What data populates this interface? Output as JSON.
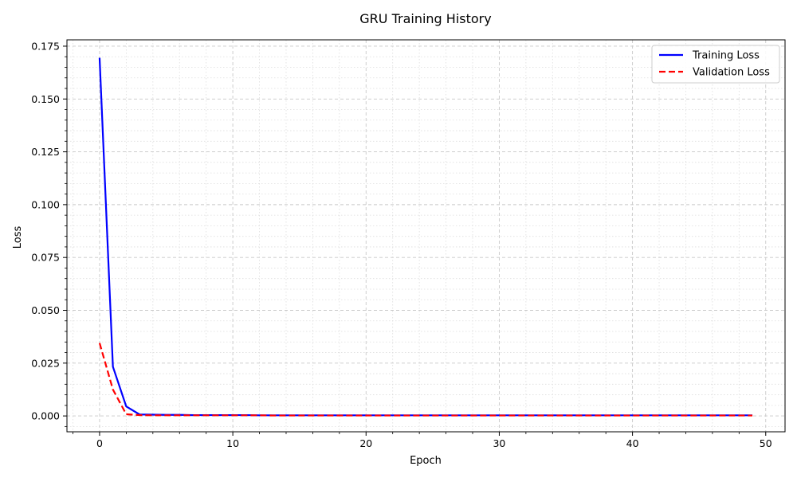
{
  "chart_data": {
    "type": "line",
    "title": "GRU Training History",
    "xlabel": "Epoch",
    "ylabel": "Loss",
    "xlim": [
      -2.45,
      51.45
    ],
    "ylim": [
      -0.0075,
      0.178
    ],
    "xticks": [
      0,
      10,
      20,
      30,
      40,
      50
    ],
    "yticks": [
      0.0,
      0.025,
      0.05,
      0.075,
      0.1,
      0.125,
      0.15,
      0.175
    ],
    "ytick_labels": [
      "0.000",
      "0.025",
      "0.050",
      "0.075",
      "0.100",
      "0.125",
      "0.150",
      "0.175"
    ],
    "grid": true,
    "minor_grid": true,
    "legend_position": "top-right",
    "series": [
      {
        "name": "Training Loss",
        "color": "#0000ff",
        "style": "solid",
        "x": [
          0,
          1,
          2,
          3,
          4,
          5,
          6,
          7,
          8,
          9,
          10,
          11,
          12,
          13,
          14,
          15,
          16,
          17,
          18,
          19,
          20,
          21,
          22,
          23,
          24,
          25,
          26,
          27,
          28,
          29,
          30,
          31,
          32,
          33,
          34,
          35,
          36,
          37,
          38,
          39,
          40,
          41,
          42,
          43,
          44,
          45,
          46,
          47,
          48,
          49
        ],
        "values": [
          0.1695,
          0.0233,
          0.0045,
          0.0007,
          0.0006,
          0.0005,
          0.0005,
          0.0004,
          0.0004,
          0.0004,
          0.0004,
          0.0004,
          0.0003,
          0.0003,
          0.0003,
          0.0003,
          0.0003,
          0.0003,
          0.0003,
          0.0003,
          0.0003,
          0.0003,
          0.0003,
          0.0003,
          0.0003,
          0.0003,
          0.0003,
          0.0003,
          0.0003,
          0.0003,
          0.0003,
          0.0003,
          0.0003,
          0.0003,
          0.0003,
          0.0003,
          0.0003,
          0.0003,
          0.0003,
          0.0003,
          0.0003,
          0.0003,
          0.0003,
          0.0003,
          0.0003,
          0.0003,
          0.0003,
          0.0003,
          0.0003,
          0.0003
        ]
      },
      {
        "name": "Validation Loss",
        "color": "#ff0000",
        "style": "dashed",
        "x": [
          0,
          1,
          2,
          3,
          4,
          5,
          6,
          7,
          8,
          9,
          10,
          11,
          12,
          13,
          14,
          15,
          16,
          17,
          18,
          19,
          20,
          21,
          22,
          23,
          24,
          25,
          26,
          27,
          28,
          29,
          30,
          31,
          32,
          33,
          34,
          35,
          36,
          37,
          38,
          39,
          40,
          41,
          42,
          43,
          44,
          45,
          46,
          47,
          48,
          49
        ],
        "values": [
          0.0345,
          0.0125,
          0.0008,
          0.0004,
          0.0003,
          0.0003,
          0.0003,
          0.0003,
          0.0003,
          0.0003,
          0.0003,
          0.0003,
          0.0003,
          0.0002,
          0.0002,
          0.0002,
          0.0002,
          0.0002,
          0.0002,
          0.0002,
          0.0002,
          0.0002,
          0.0002,
          0.0002,
          0.0002,
          0.0002,
          0.0002,
          0.0002,
          0.0002,
          0.0002,
          0.0002,
          0.0002,
          0.0002,
          0.0002,
          0.0002,
          0.0002,
          0.0002,
          0.0002,
          0.0002,
          0.0002,
          0.0002,
          0.0002,
          0.0002,
          0.0002,
          0.0002,
          0.0002,
          0.0002,
          0.0002,
          0.0002,
          0.0002
        ]
      }
    ]
  }
}
